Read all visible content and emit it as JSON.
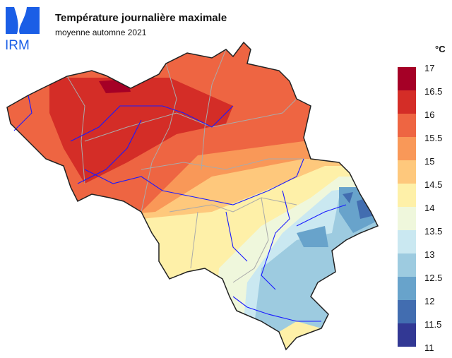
{
  "logo_text": "IRM",
  "title": "Température journalière maximale",
  "subtitle": "moyenne automne 2021",
  "legend": {
    "unit": "°C",
    "labels": [
      "17",
      "16.5",
      "16",
      "15.5",
      "15",
      "14.5",
      "14",
      "13.5",
      "13",
      "12.5",
      "12",
      "11.5",
      "11"
    ],
    "colors": [
      "#a50026",
      "#d42d27",
      "#ee6542",
      "#f99858",
      "#fec87c",
      "#fef0a8",
      "#eff7dc",
      "#cae8f1",
      "#9dcbe0",
      "#68a3cb",
      "#426db0",
      "#323894"
    ]
  },
  "colors": {
    "rivers": "#1a1aff",
    "boundaries": "#aaaaaa",
    "border": "#222222",
    "logo": "#1a5ee6"
  }
}
